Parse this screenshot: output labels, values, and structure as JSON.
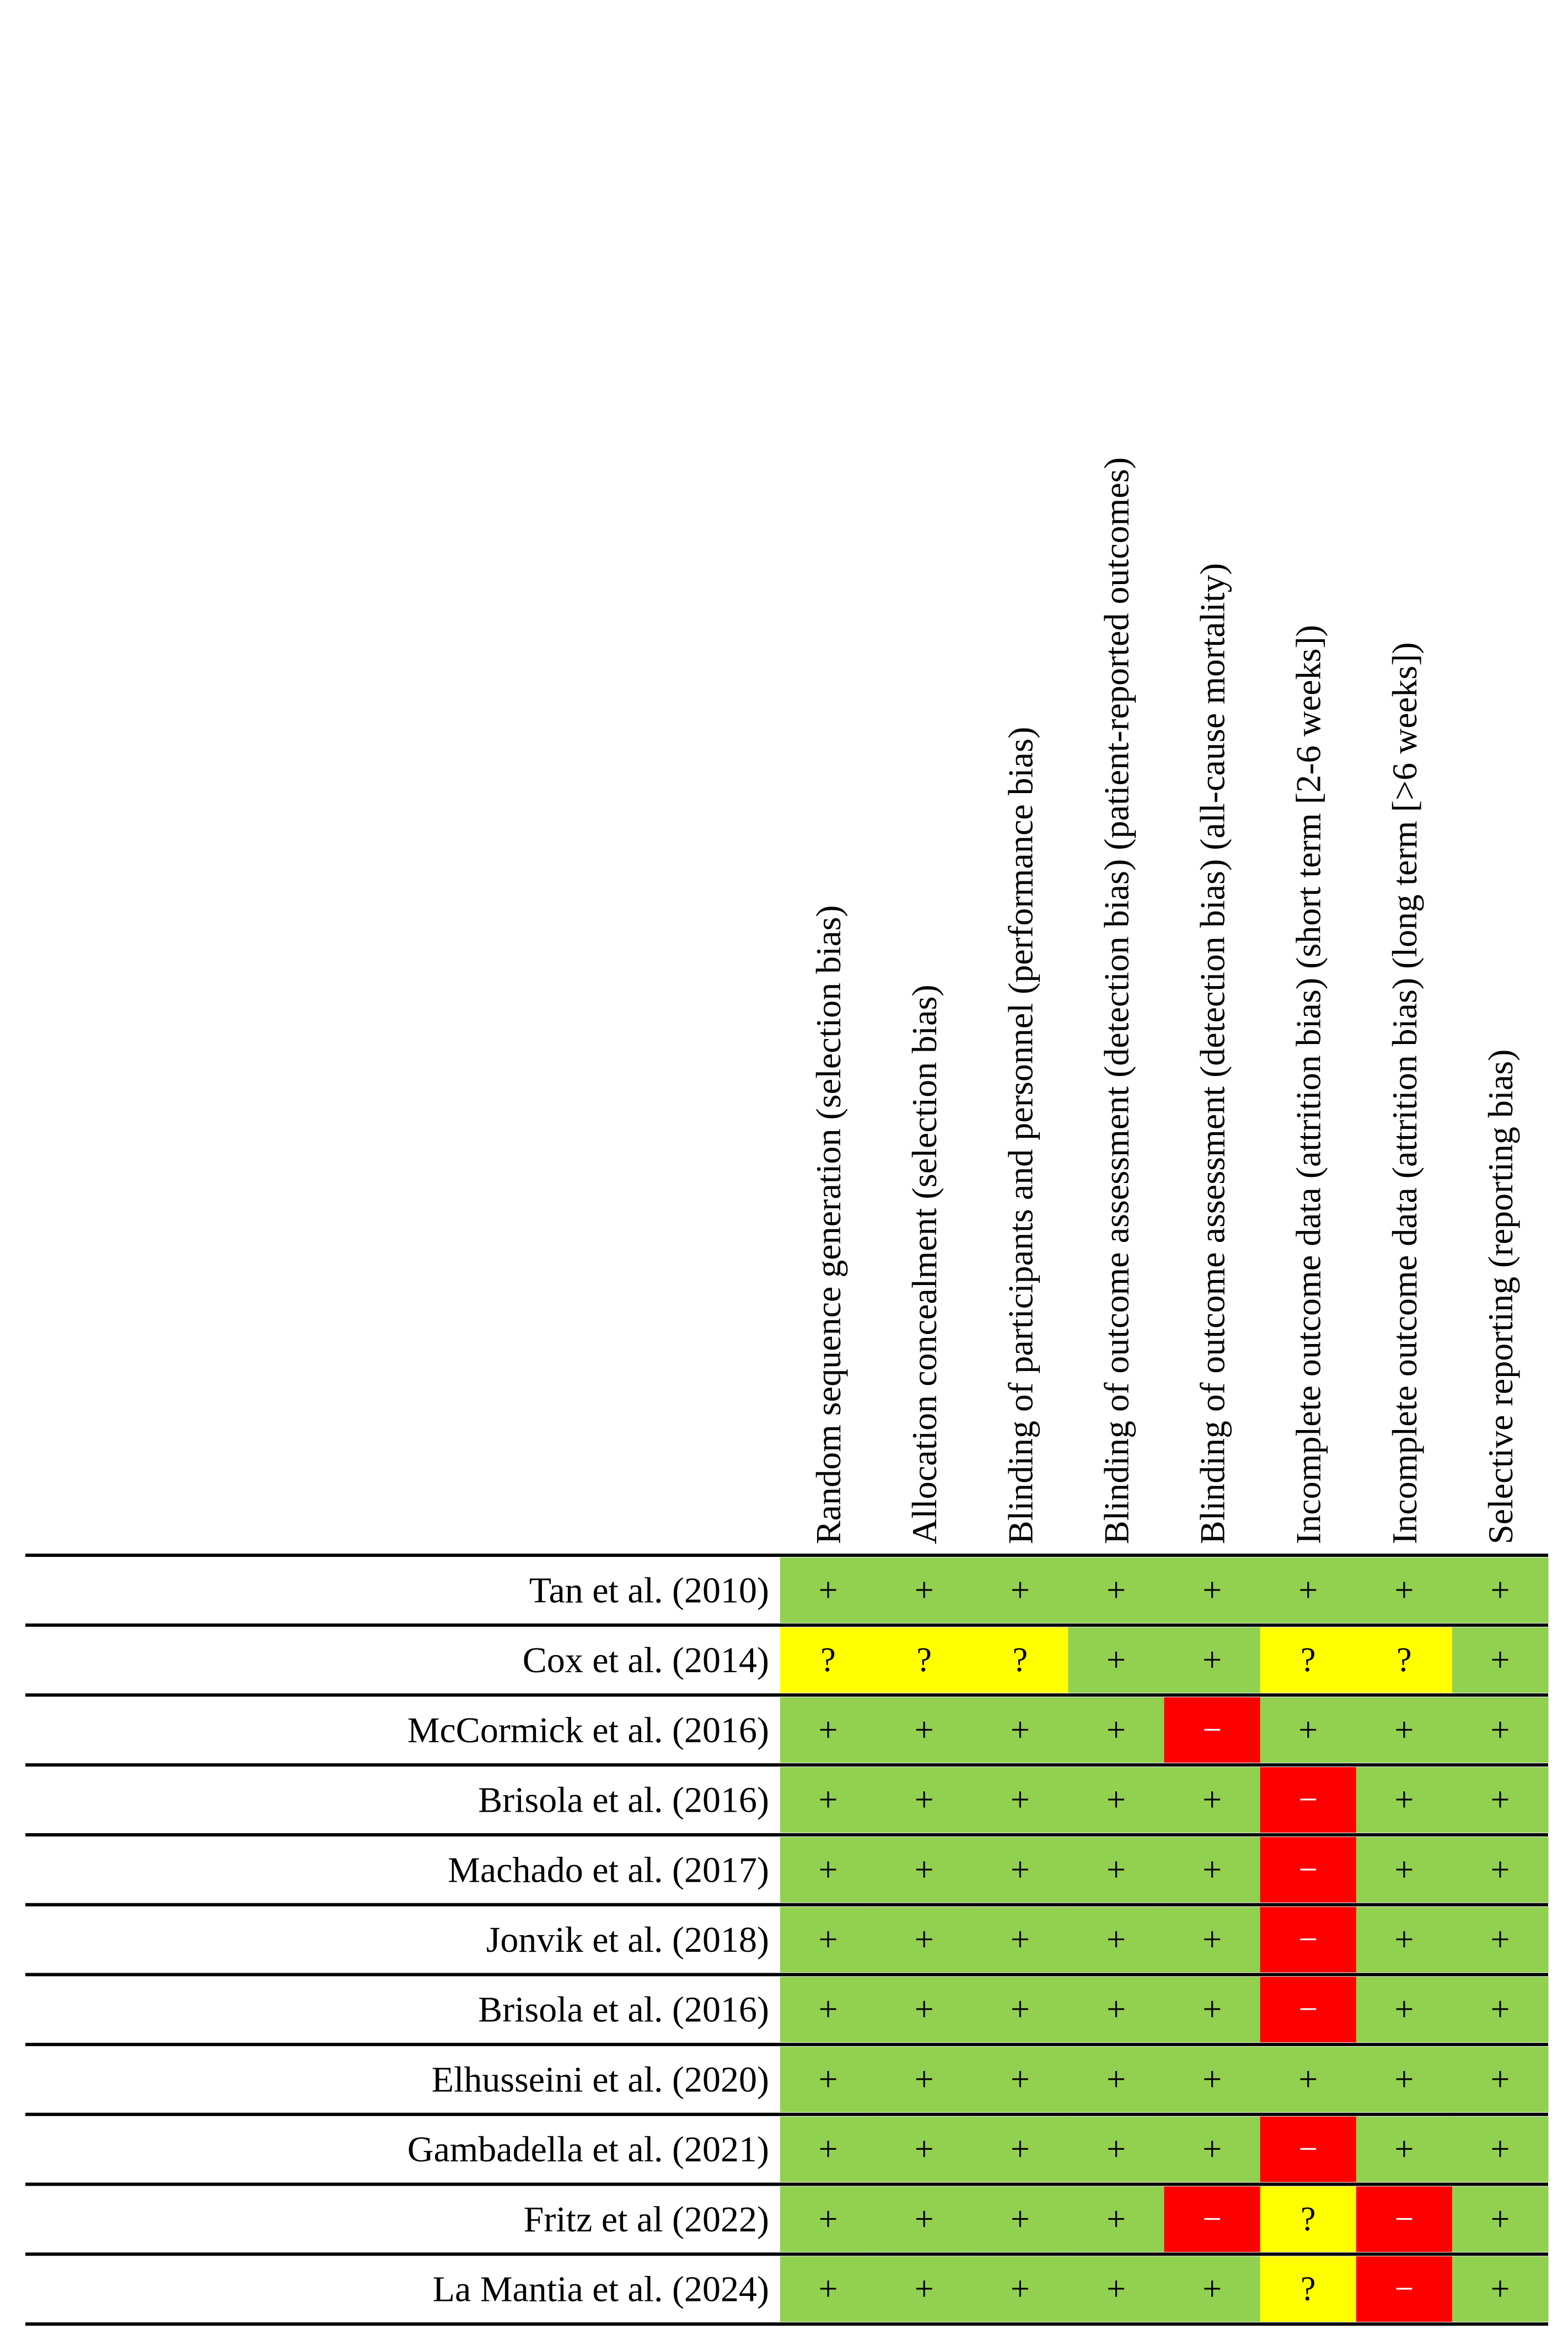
{
  "chart_data": {
    "type": "table",
    "title": "",
    "columns": [
      "Random sequence generation (selection bias)",
      "Allocation concealment (selection bias)",
      "Blinding of participants and personnel (performance bias)",
      "Blinding of outcome assessment (detection bias) (patient-reported outcomes)",
      "Blinding of outcome assessment (detection bias) (all-cause mortality)",
      "Incomplete outcome data (attrition bias) (short term [2-6 weeks])",
      "Incomplete outcome data (attrition bias) (long term [>6 weeks])",
      "Selective reporting (reporting bias)"
    ],
    "studies": [
      {
        "name": "Tan et al. (2010)",
        "ratings": [
          "+",
          "+",
          "+",
          "+",
          "+",
          "+",
          "+",
          "+"
        ]
      },
      {
        "name": "Cox et al. (2014)",
        "ratings": [
          "?",
          "?",
          "?",
          "+",
          "+",
          "?",
          "?",
          "+"
        ]
      },
      {
        "name": "McCormick et al. (2016)",
        "ratings": [
          "+",
          "+",
          "+",
          "+",
          "−",
          "+",
          "+",
          "+"
        ]
      },
      {
        "name": "Brisola et al. (2016)",
        "ratings": [
          "+",
          "+",
          "+",
          "+",
          "+",
          "−",
          "+",
          "+"
        ]
      },
      {
        "name": "Machado et al. (2017)",
        "ratings": [
          "+",
          "+",
          "+",
          "+",
          "+",
          "−",
          "+",
          "+"
        ]
      },
      {
        "name": "Jonvik et al. (2018)",
        "ratings": [
          "+",
          "+",
          "+",
          "+",
          "+",
          "−",
          "+",
          "+"
        ]
      },
      {
        "name": "Brisola et al. (2016)",
        "ratings": [
          "+",
          "+",
          "+",
          "+",
          "+",
          "−",
          "+",
          "+"
        ]
      },
      {
        "name": "Elhusseini et al. (2020)",
        "ratings": [
          "+",
          "+",
          "+",
          "+",
          "+",
          "+",
          "+",
          "+"
        ]
      },
      {
        "name": "Gambadella et al. (2021)",
        "ratings": [
          "+",
          "+",
          "+",
          "+",
          "+",
          "−",
          "+",
          "+"
        ]
      },
      {
        "name": "Fritz et al (2022)",
        "ratings": [
          "+",
          "+",
          "+",
          "+",
          "−",
          "?",
          "−",
          "+"
        ]
      },
      {
        "name": "La Mantia et al. (2024)",
        "ratings": [
          "+",
          "+",
          "+",
          "+",
          "+",
          "?",
          "−",
          "+"
        ]
      }
    ],
    "rating_colors": {
      "+": "#92d050",
      "?": "#ffff00",
      "−": "#ff0000"
    },
    "symbol_colors": {
      "+": "#000000",
      "?": "#000000",
      "−": "#ffffff"
    }
  }
}
